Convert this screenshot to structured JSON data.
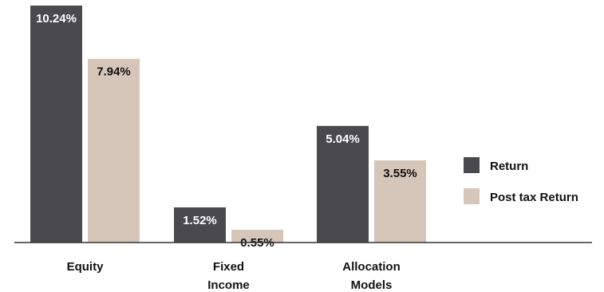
{
  "chart_data": {
    "type": "bar",
    "categories": [
      [
        "Equity"
      ],
      [
        "Fixed",
        "Income"
      ],
      [
        "Allocation",
        "Models"
      ]
    ],
    "series": [
      {
        "name": "Return",
        "values": [
          10.24,
          1.52,
          5.04
        ],
        "labels": [
          "10.24%",
          "1.52%",
          "5.04%"
        ],
        "color": "#4a4a4c",
        "label_color": "#ffffff"
      },
      {
        "name": "Post tax Return",
        "values": [
          7.94,
          0.55,
          3.55
        ],
        "labels": [
          "7.94%",
          "0.55%",
          "3.55%"
        ],
        "color": "#d6c5b9",
        "label_color": "#111111"
      }
    ],
    "ylim": [
      0,
      10.24
    ],
    "legend_position": "right",
    "grid": false
  }
}
